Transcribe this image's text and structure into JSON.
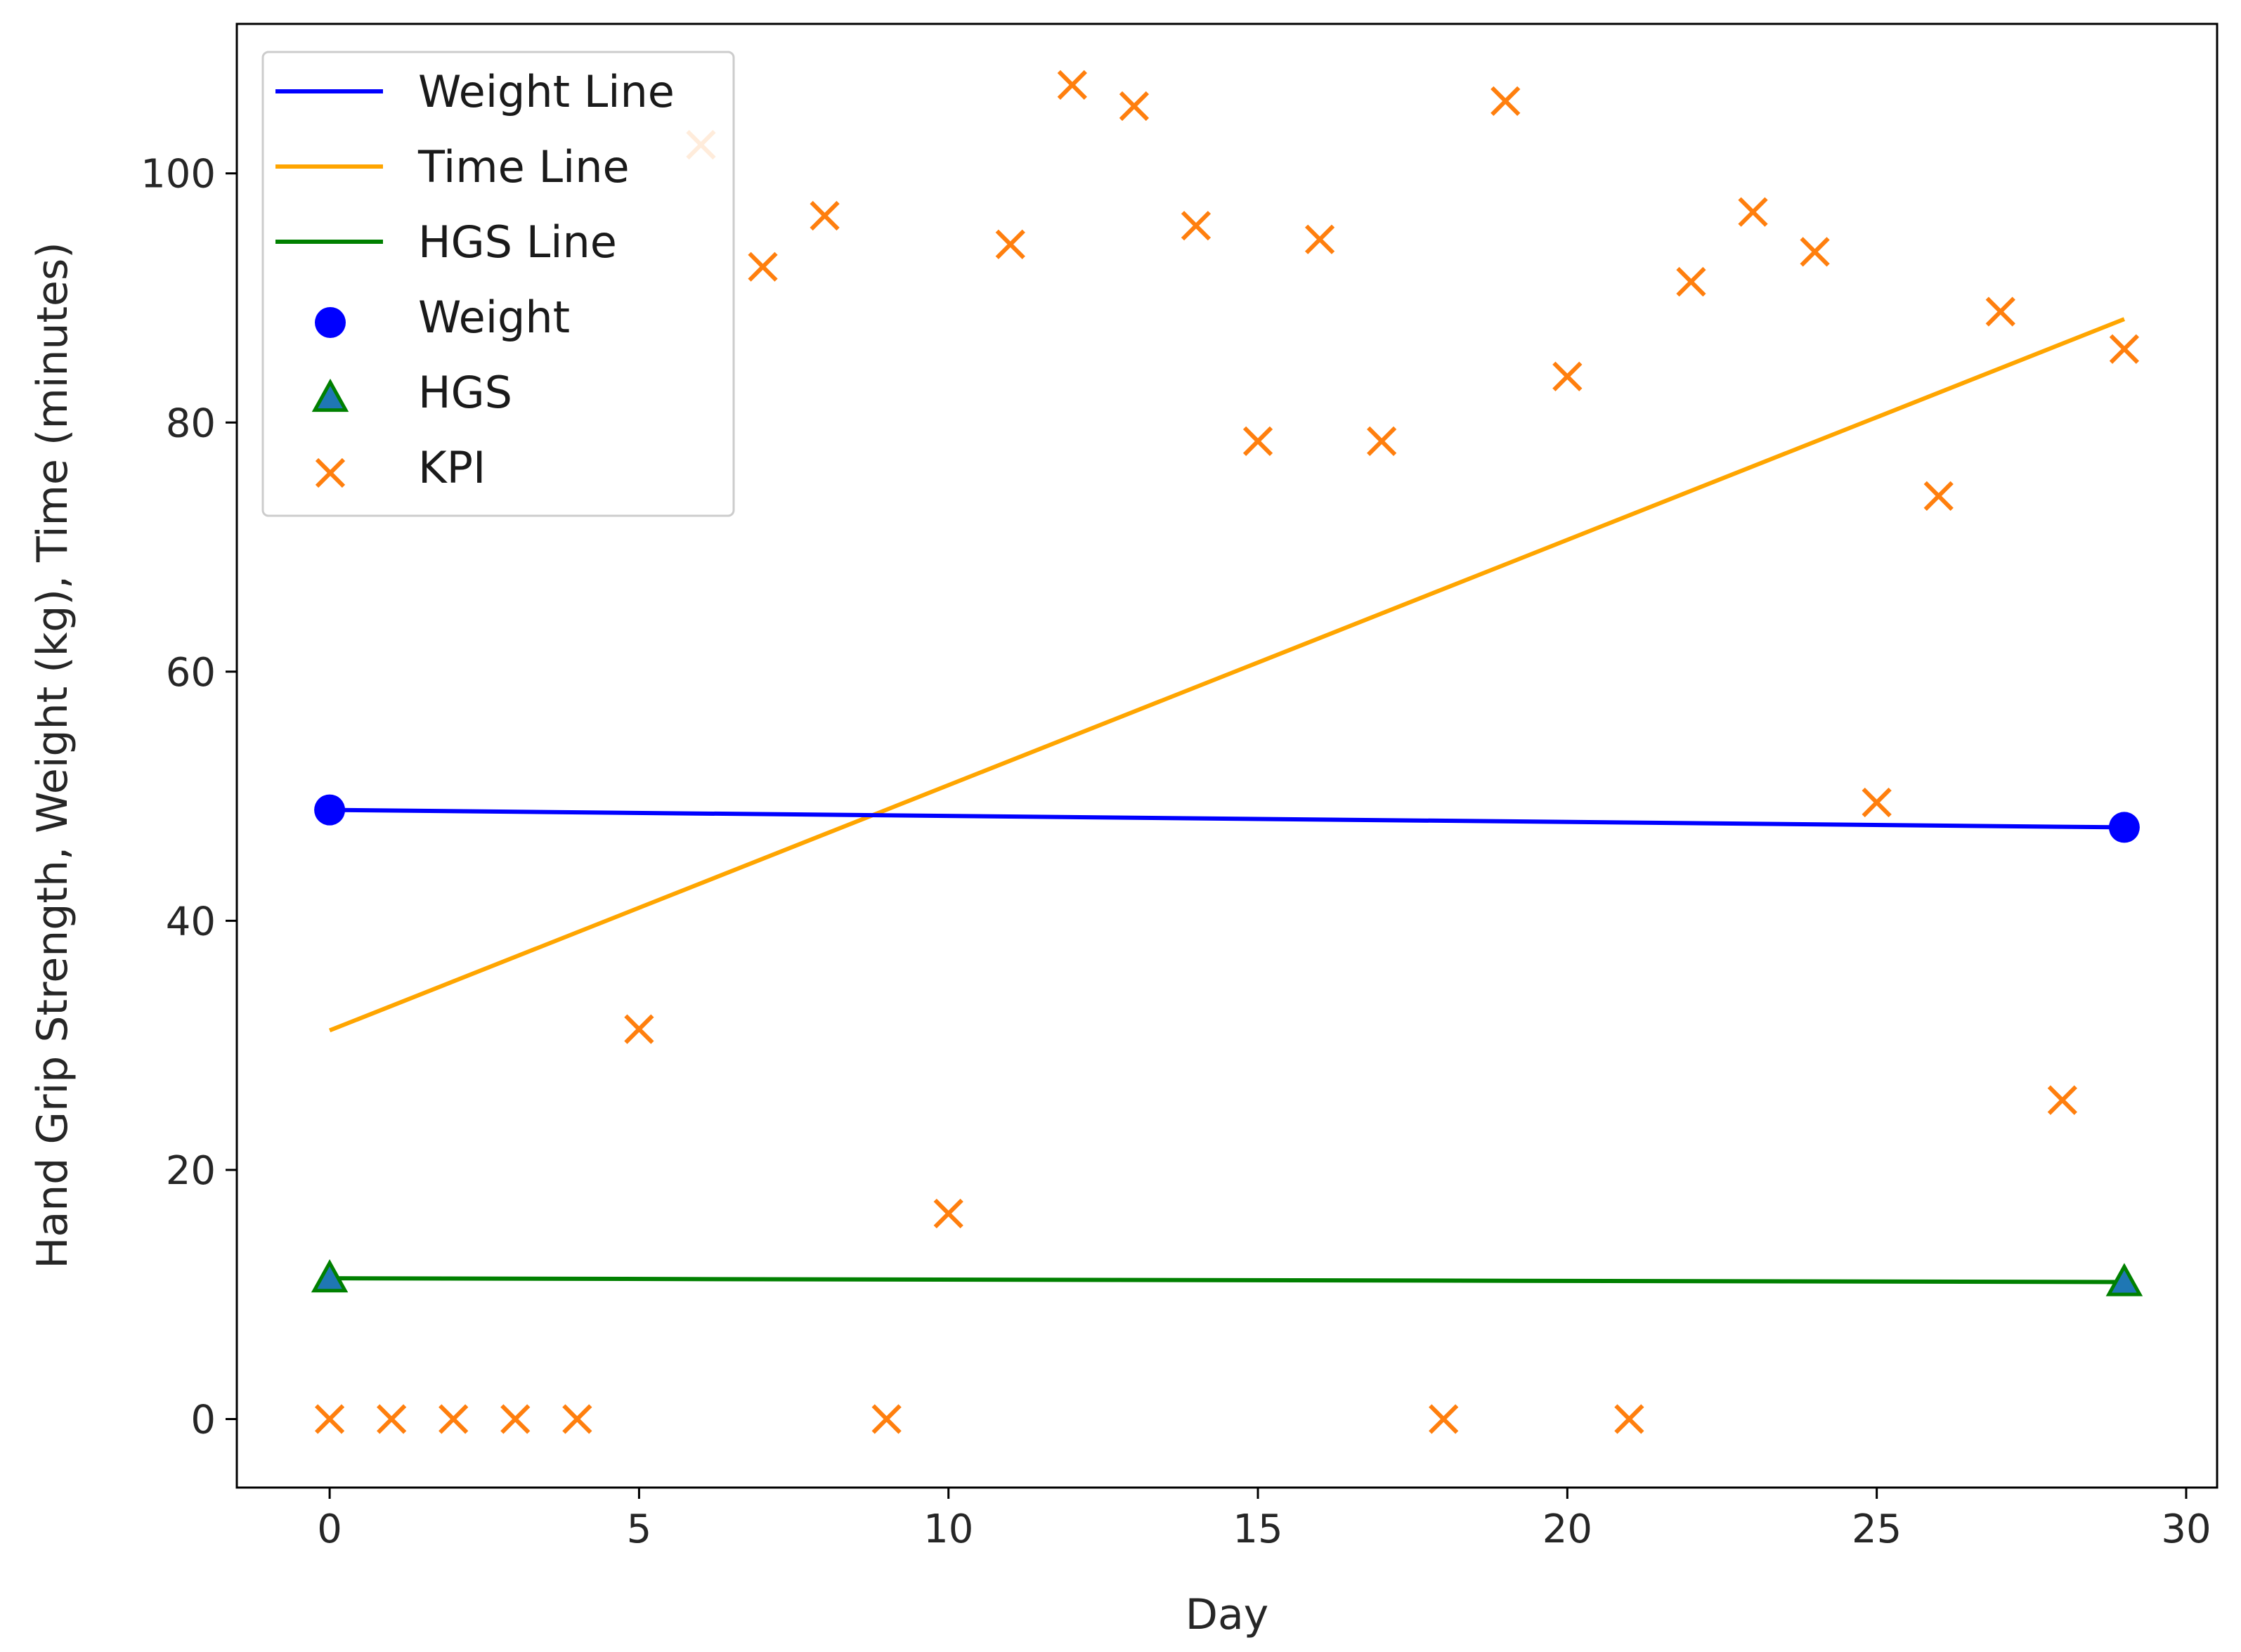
{
  "chart_data": {
    "type": "line",
    "xlabel": "Day",
    "ylabel": "Hand Grip Strength, Weight (kg), Time (minutes)",
    "xlim": [
      -1.5,
      30.5
    ],
    "ylim": [
      -5.5,
      112
    ],
    "xticks": [
      0,
      5,
      10,
      15,
      20,
      25,
      30
    ],
    "yticks": [
      0,
      20,
      40,
      60,
      80,
      100
    ],
    "grid": false,
    "legend_position": "top-left",
    "series": [
      {
        "name": "Weight Line",
        "kind": "line",
        "color": "#0000ff",
        "x": [
          0,
          29
        ],
        "y": [
          48.9,
          47.5
        ]
      },
      {
        "name": "Time Line",
        "kind": "line",
        "color": "#ffa500",
        "x": [
          0,
          29
        ],
        "y": [
          31.2,
          88.3
        ]
      },
      {
        "name": "HGS Line",
        "kind": "line",
        "color": "#008000",
        "x": [
          0,
          29
        ],
        "y": [
          11.3,
          11.0
        ]
      },
      {
        "name": "Weight",
        "kind": "scatter",
        "marker": "circle",
        "color": "#0000ff",
        "x": [
          0,
          29
        ],
        "y": [
          48.9,
          47.5
        ]
      },
      {
        "name": "HGS",
        "kind": "scatter",
        "marker": "triangle",
        "color": "#1f77b4",
        "edge_color": "#008000",
        "x": [
          0,
          29
        ],
        "y": [
          11.3,
          11.0
        ]
      },
      {
        "name": "KPI",
        "kind": "scatter",
        "marker": "x",
        "color": "#ff7f0e",
        "x": [
          0,
          1,
          2,
          3,
          4,
          5,
          6,
          7,
          8,
          9,
          10,
          11,
          12,
          13,
          14,
          15,
          16,
          17,
          18,
          19,
          20,
          21,
          22,
          23,
          24,
          25,
          26,
          27,
          28,
          29
        ],
        "y": [
          0,
          0,
          0,
          0,
          0,
          31.3,
          102.3,
          92.5,
          96.6,
          0,
          16.5,
          94.3,
          107.1,
          105.4,
          95.8,
          78.5,
          94.7,
          78.5,
          0,
          105.8,
          83.7,
          0,
          91.3,
          96.9,
          93.7,
          49.5,
          74.1,
          88.9,
          25.6,
          85.9
        ]
      }
    ]
  }
}
